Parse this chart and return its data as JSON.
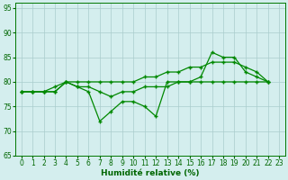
{
  "xlabel": "Humidité relative (%)",
  "xlim": [
    -0.5,
    23.5
  ],
  "ylim": [
    65,
    96
  ],
  "yticks": [
    65,
    70,
    75,
    80,
    85,
    90,
    95
  ],
  "xticks": [
    0,
    1,
    2,
    3,
    4,
    5,
    6,
    7,
    8,
    9,
    10,
    11,
    12,
    13,
    14,
    15,
    16,
    17,
    18,
    19,
    20,
    21,
    22,
    23
  ],
  "background_color": "#d4eeee",
  "grid_color": "#aacccc",
  "line_color": "#008800",
  "x_values": [
    0,
    1,
    2,
    3,
    4,
    5,
    6,
    7,
    8,
    9,
    10,
    11,
    12,
    13,
    14,
    15,
    16,
    17,
    18,
    19,
    20,
    21,
    22
  ],
  "series1_smooth": [
    78,
    78,
    78,
    79,
    80,
    80,
    80,
    80,
    80,
    80,
    80,
    81,
    81,
    82,
    82,
    83,
    83,
    84,
    84,
    84,
    83,
    82,
    80
  ],
  "series2_volatile": [
    78,
    78,
    78,
    78,
    80,
    79,
    78,
    72,
    74,
    76,
    76,
    75,
    73,
    80,
    80,
    80,
    81,
    86,
    85,
    85,
    82,
    81,
    80
  ],
  "series3_flat": [
    78,
    78,
    78,
    78,
    80,
    79,
    79,
    78,
    77,
    78,
    78,
    79,
    79,
    79,
    80,
    80,
    80,
    80,
    80,
    80,
    80,
    80,
    80
  ]
}
